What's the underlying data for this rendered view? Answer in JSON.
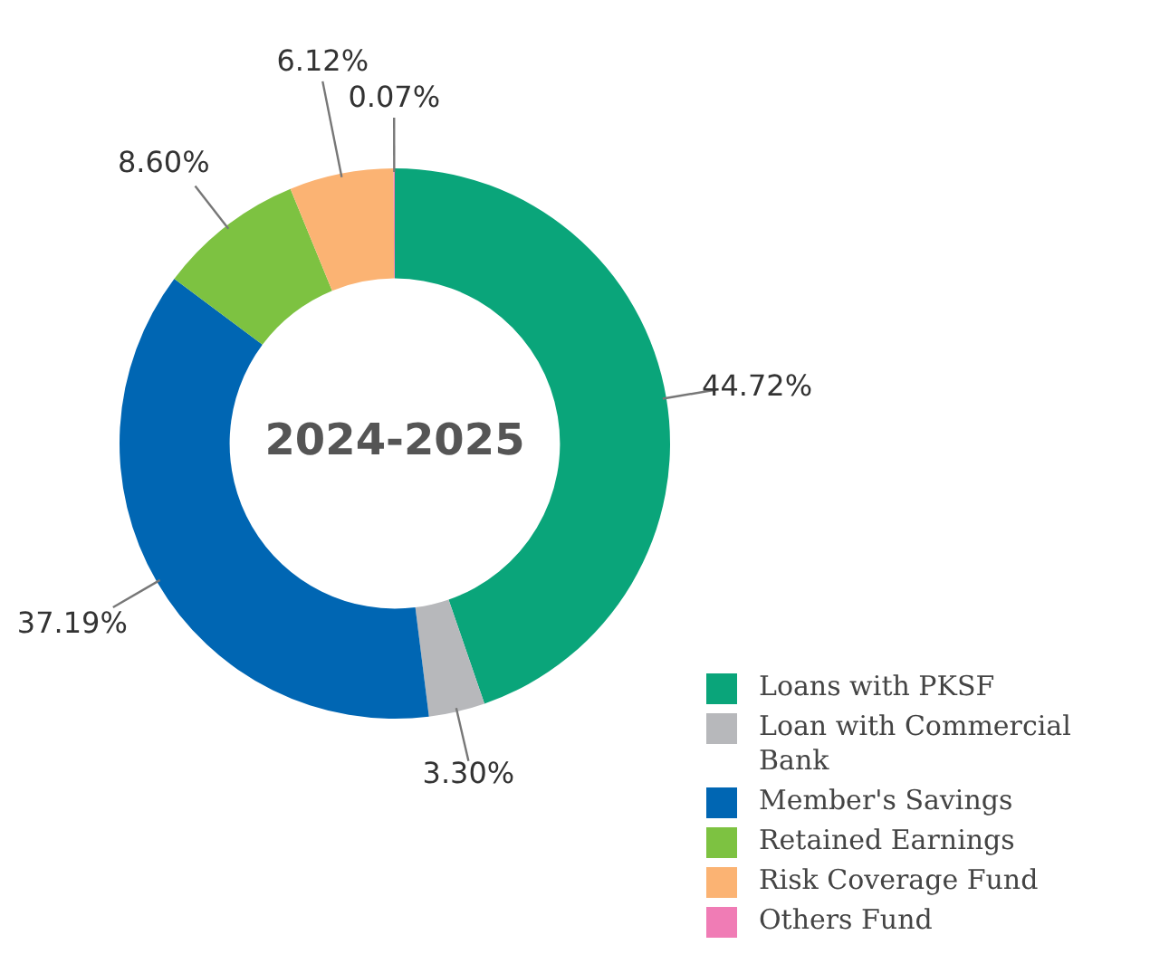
{
  "chart_data": {
    "type": "donut",
    "title": "2024-2025",
    "categories": [
      "Loans with PKSF",
      "Loan with Commercial Bank",
      "Member's Savings",
      "Retained Earnings",
      "Risk Coverage Fund",
      "Others Fund"
    ],
    "values": [
      44.72,
      3.3,
      37.19,
      8.6,
      6.12,
      0.07
    ],
    "colors": [
      "#0aa57a",
      "#b7b8bb",
      "#0066b3",
      "#7dc241",
      "#fbb373",
      "#f07cb5"
    ],
    "value_labels": [
      "44.72%",
      "3.30%",
      "37.19%",
      "8.60%",
      "6.12%",
      "0.07%"
    ],
    "legend": "bottom right"
  }
}
